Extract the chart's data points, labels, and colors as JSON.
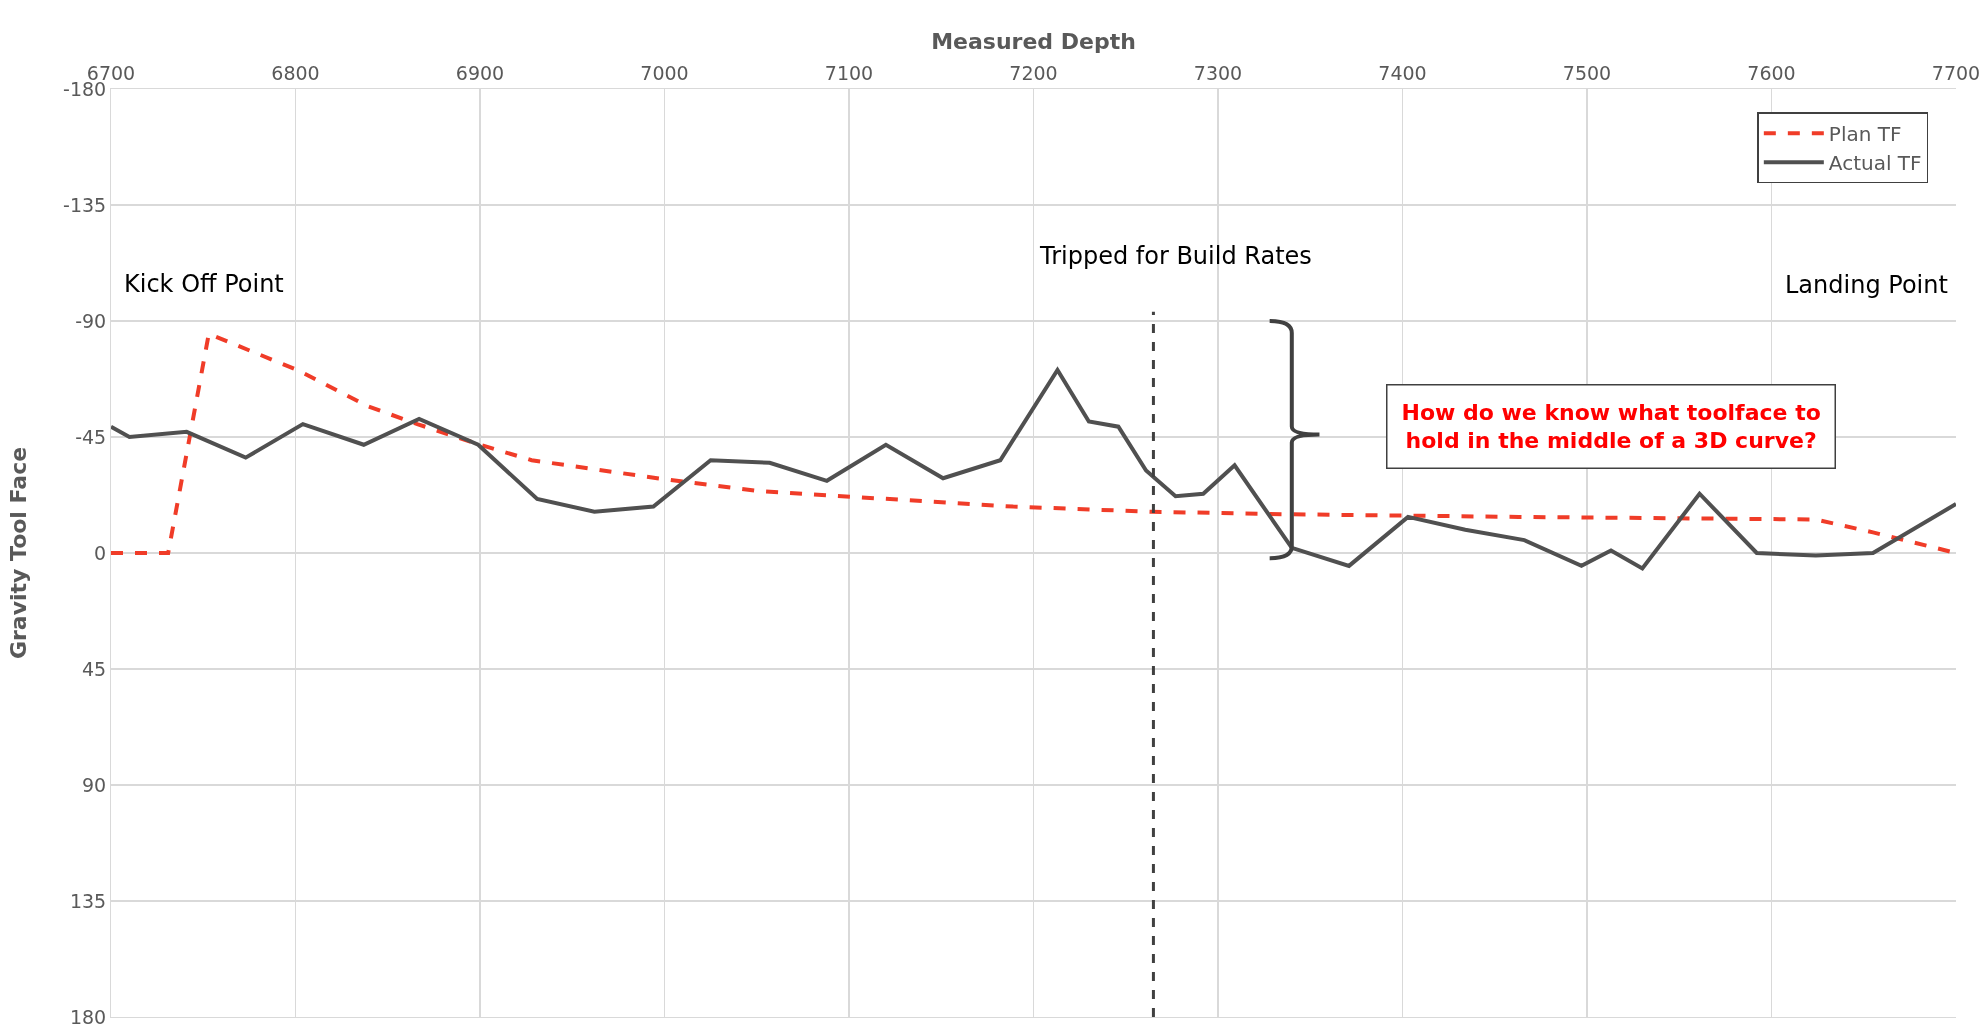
{
  "chart_data": {
    "type": "line",
    "xlabel": "Measured Depth",
    "ylabel": "Gravity Tool Face",
    "xlim": [
      6700,
      7700
    ],
    "xticks": [
      6700,
      6800,
      6900,
      7000,
      7100,
      7200,
      7300,
      7400,
      7500,
      7600,
      7700
    ],
    "ylim": [
      180,
      -180
    ],
    "yticks": [
      -180,
      -135,
      -90,
      -45,
      0,
      45,
      90,
      135,
      180
    ],
    "grid": true,
    "legend": "top right",
    "marker": "none",
    "series": [
      {
        "name": "Plan TF",
        "color": "#f03c28",
        "line_style": "dashed",
        "x": [
          6700,
          6731,
          6753,
          6801,
          6839,
          6866,
          6900,
          6928,
          6996,
          7051,
          7120,
          7189,
          7264,
          7340,
          7463,
          7624,
          7655,
          7700
        ],
        "values": [
          0,
          0,
          -85,
          -71,
          -57,
          -50,
          -42,
          -36,
          -29,
          -24,
          -21,
          -18,
          -16,
          -15,
          -14,
          -13,
          -8,
          0
        ]
      },
      {
        "name": "Actual TF",
        "color": "#505050",
        "line_style": "solid",
        "x": [
          6700,
          6710,
          6741,
          6773,
          6804,
          6837,
          6867,
          6899,
          6931,
          6962,
          6994,
          7025,
          7057,
          7088,
          7120,
          7151,
          7182,
          7213,
          7230,
          7246,
          7261,
          7277,
          7292,
          7309,
          7340,
          7371,
          7403,
          7434,
          7466,
          7497,
          7513,
          7530,
          7561,
          7592,
          7624,
          7655,
          7700
        ],
        "values": [
          -49,
          -45,
          -47,
          -37,
          -50,
          -42,
          -52,
          -42,
          -21,
          -16,
          -18,
          -36,
          -35,
          -28,
          -42,
          -29,
          -36,
          -71,
          -51,
          -49,
          -32,
          -22,
          -23,
          -34,
          -2,
          5,
          -14,
          -9,
          -5,
          5,
          -1,
          6,
          -23,
          0,
          1,
          0,
          -19
        ]
      }
    ],
    "ref_lines": [
      {
        "axis": "x",
        "value": 7265,
        "color": "#404040",
        "line_style": "dashed"
      }
    ],
    "annotations": [
      "Kick Off Point",
      "Tripped for Build Rates",
      "Landing Point",
      "How do we know what toolface to hold in the middle of a 3D curve?"
    ]
  }
}
